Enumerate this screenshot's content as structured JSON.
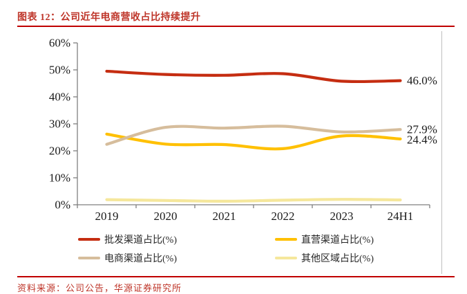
{
  "header": {
    "title": "图表 12：公司近年电商营收占比持续提升"
  },
  "footer": {
    "source": "资料来源：公司公告，华源证券研究所"
  },
  "colors": {
    "rule_red": "#C00000",
    "title_red": "#BE3428",
    "axis_gray": "#7F7F7F",
    "divider_gray": "#BFBFBF",
    "tick_label": "#1A1A1A"
  },
  "chart_data": {
    "type": "line",
    "title": "公司近年电商营收占比持续提升",
    "categories": [
      "2019",
      "2020",
      "2021",
      "2022",
      "2023",
      "24H1"
    ],
    "y_ticks": [
      "0%",
      "10%",
      "20%",
      "30%",
      "40%",
      "50%",
      "60%"
    ],
    "ylim": [
      0,
      60
    ],
    "grid": false,
    "legend_position": "bottom",
    "series": [
      {
        "name": "批发渠道占比(%)",
        "color": "#C52D11",
        "values": [
          49.5,
          48.3,
          48.0,
          48.6,
          45.8,
          46.0
        ],
        "end_label": "46.0%"
      },
      {
        "name": "直营渠道占比(%)",
        "color": "#FFC000",
        "values": [
          26.2,
          22.5,
          22.3,
          20.8,
          25.5,
          24.4
        ],
        "end_label": "24.4%"
      },
      {
        "name": "电商渠道占比(%)",
        "color": "#D6BD9C",
        "values": [
          22.4,
          28.7,
          28.4,
          29.1,
          27.0,
          27.9
        ],
        "end_label": "27.9%"
      },
      {
        "name": "其他区域占比(%)",
        "color": "#F5E79C",
        "values": [
          1.9,
          1.6,
          1.3,
          1.7,
          2.0,
          1.8
        ],
        "end_label": null
      }
    ]
  }
}
